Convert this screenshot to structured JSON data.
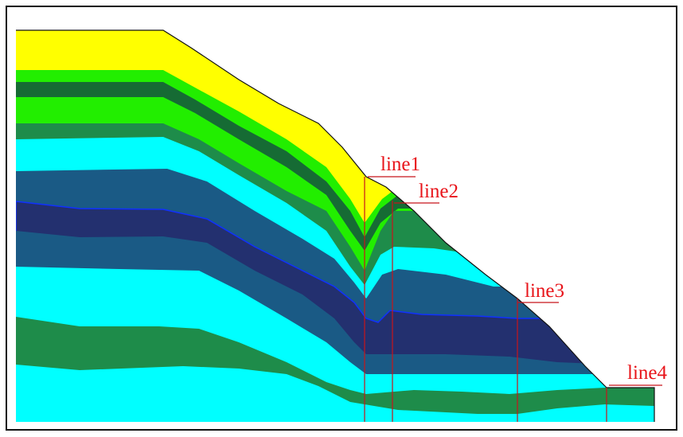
{
  "labels": [
    "line1",
    "line2",
    "line3",
    "line4"
  ]
}
